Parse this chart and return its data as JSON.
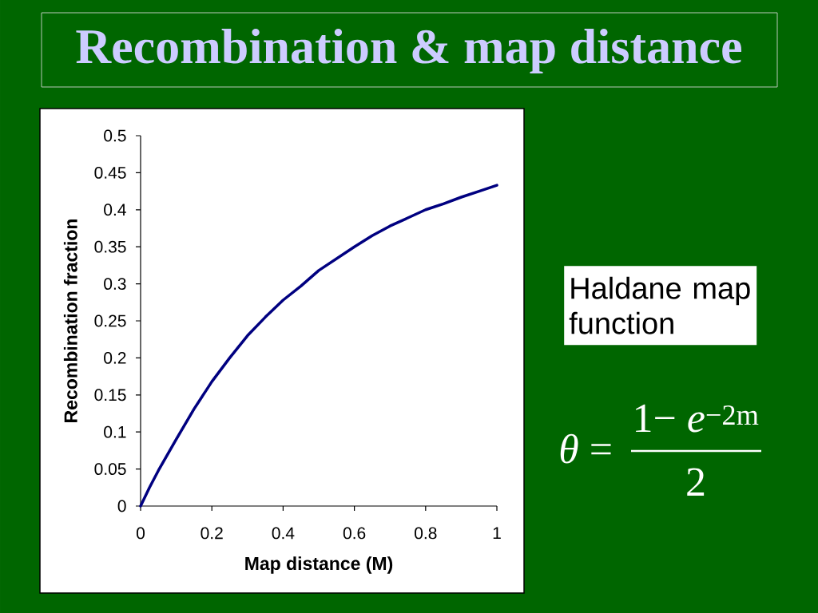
{
  "chart_data": {
    "type": "line",
    "title": "Recombination & map distance",
    "xlabel": "Map distance (M)",
    "ylabel": "Recombination fraction",
    "x": [
      0,
      0.025,
      0.05,
      0.1,
      0.15,
      0.2,
      0.25,
      0.3,
      0.35,
      0.4,
      0.45,
      0.5,
      0.55,
      0.6,
      0.65,
      0.7,
      0.75,
      0.8,
      0.85,
      0.9,
      0.95,
      1
    ],
    "series": [
      {
        "color": "#000080",
        "values": [
          0,
          0.025,
          0.048,
          0.09,
          0.131,
          0.168,
          0.2,
          0.23,
          0.255,
          0.278,
          0.297,
          0.318,
          0.334,
          0.35,
          0.365,
          0.378,
          0.389,
          0.4,
          0.408,
          0.417,
          0.425,
          0.433
        ]
      }
    ],
    "xlim": [
      0,
      1
    ],
    "ylim": [
      0,
      0.5
    ],
    "xticks": [
      0,
      0.2,
      0.4,
      0.6,
      0.8,
      1
    ],
    "yticks": [
      0,
      0.05,
      0.1,
      0.15,
      0.2,
      0.25,
      0.3,
      0.35,
      0.4,
      0.45,
      0.5
    ],
    "marker": "none",
    "line_style": "solid",
    "annotations": [
      "Haldane map function",
      "*θ* =",
      "1− *e*$^{−2m}$",
      "2"
    ]
  }
}
